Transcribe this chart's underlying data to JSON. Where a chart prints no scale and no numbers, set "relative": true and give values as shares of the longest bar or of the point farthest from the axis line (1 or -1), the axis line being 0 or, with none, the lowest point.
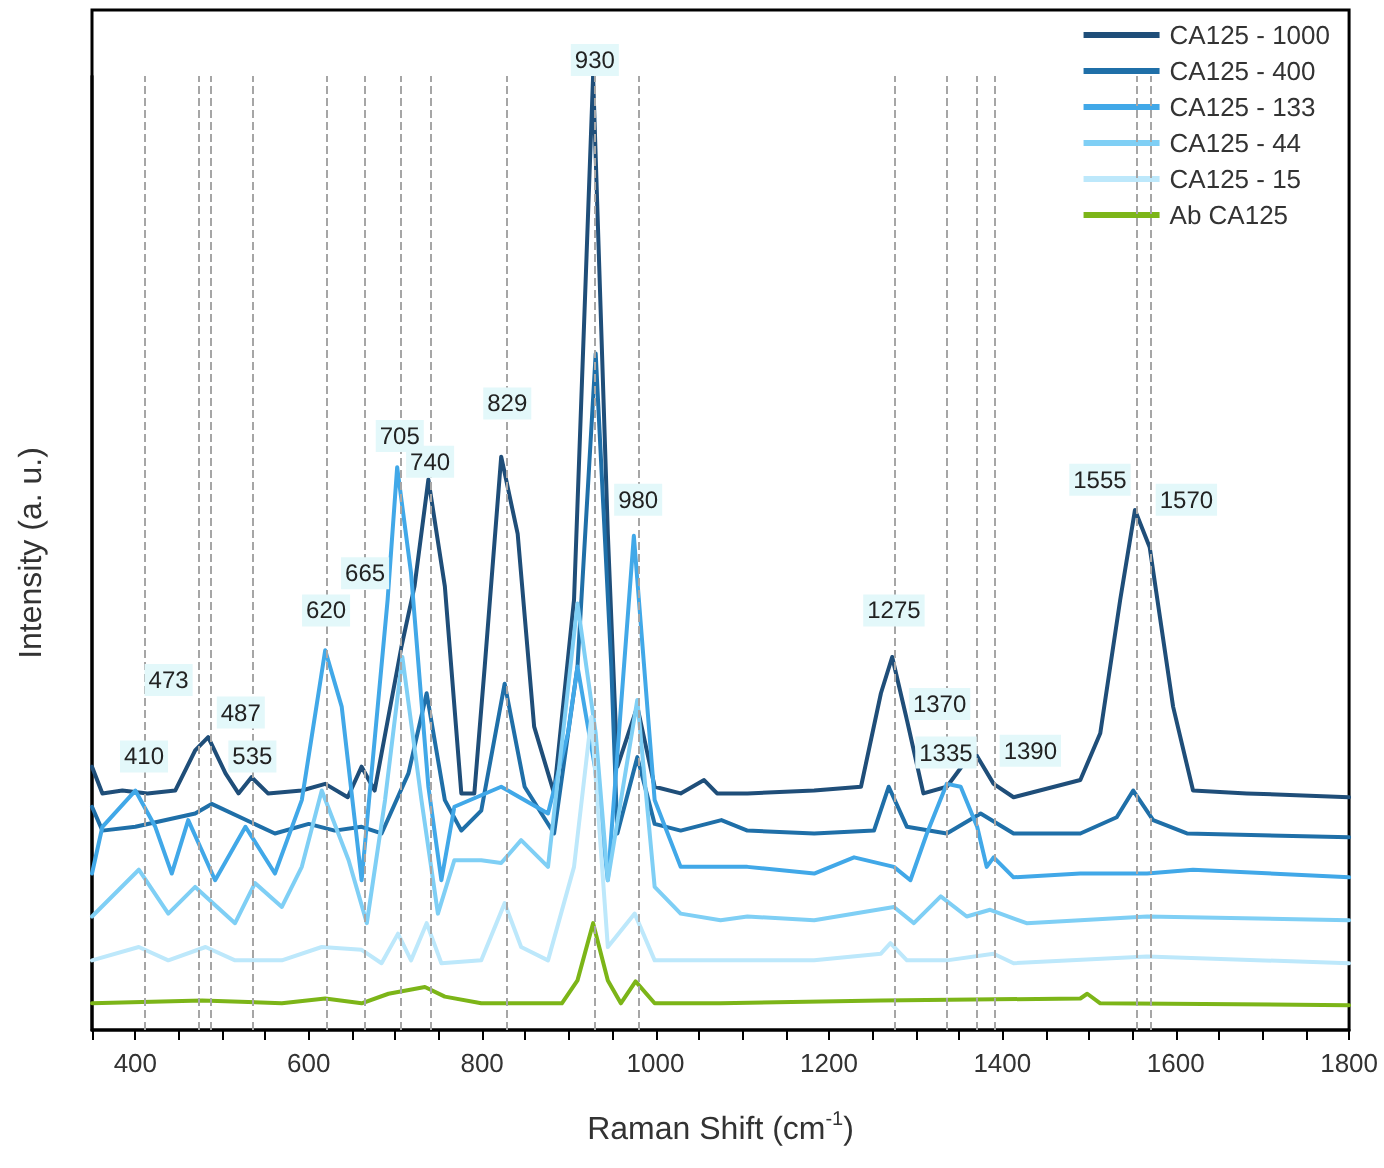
{
  "chart_data": {
    "type": "line",
    "xlabel": "Raman Shift (cm$^{-1}$)",
    "ylabel": "Intensity (a. u.)",
    "relative": true,
    "legend": "top right",
    "grid": false,
    "marker": "none",
    "line_style": "solid",
    "xlim": [
      350,
      1800
    ],
    "xticks": [
      {
        "value": 350,
        "label": null
      },
      400,
      {
        "value": 450,
        "label": null
      },
      {
        "value": 500,
        "label": null
      },
      {
        "value": 550,
        "label": null
      },
      600,
      {
        "value": 650,
        "label": null
      },
      {
        "value": 700,
        "label": null
      },
      {
        "value": 750,
        "label": null
      },
      800,
      {
        "value": 850,
        "label": null
      },
      {
        "value": 900,
        "label": null
      },
      {
        "value": 950,
        "label": null
      },
      1000,
      {
        "value": 1050,
        "label": null
      },
      {
        "value": 1100,
        "label": null
      },
      {
        "value": 1150,
        "label": null
      },
      1200,
      {
        "value": 1250,
        "label": null
      },
      {
        "value": 1300,
        "label": null
      },
      {
        "value": 1350,
        "label": null
      },
      1400,
      {
        "value": 1450,
        "label": null
      },
      {
        "value": 1500,
        "label": null
      },
      {
        "value": 1550,
        "label": null
      },
      1600,
      {
        "value": 1650,
        "label": null
      },
      {
        "value": 1700,
        "label": null
      },
      {
        "value": 1750,
        "label": null
      },
      1800
    ],
    "series": [
      {
        "name": "CA125 - 1000",
        "color": "#1f4e79",
        "x": [
          350,
          362,
          385,
          414,
          446,
          469,
          484,
          504,
          519,
          534,
          553,
          592,
          619,
          645,
          661,
          676,
          707,
          722,
          738,
          757,
          776,
          791,
          803,
          822,
          841,
          860,
          883,
          906,
          928,
          945,
          956,
          979,
          999,
          1029,
          1056,
          1071,
          1106,
          1183,
          1237,
          1260,
          1273,
          1290,
          1309,
          1336,
          1367,
          1390,
          1413,
          1490,
          1513,
          1536,
          1553,
          1570,
          1597,
          1620,
          1682,
          1800
        ],
        "values": [
          0.276,
          0.248,
          0.251,
          0.248,
          0.251,
          0.293,
          0.307,
          0.269,
          0.248,
          0.265,
          0.248,
          0.251,
          0.258,
          0.244,
          0.276,
          0.251,
          0.402,
          0.465,
          0.577,
          0.465,
          0.248,
          0.248,
          0.381,
          0.601,
          0.52,
          0.318,
          0.248,
          0.451,
          1,
          0.52,
          0.276,
          0.339,
          0.255,
          0.248,
          0.262,
          0.248,
          0.248,
          0.251,
          0.255,
          0.353,
          0.391,
          0.325,
          0.248,
          0.255,
          0.293,
          0.258,
          0.244,
          0.262,
          0.311,
          0.451,
          0.545,
          0.506,
          0.339,
          0.251,
          0.248,
          0.244
        ]
      },
      {
        "name": "CA125 - 400",
        "color": "#1f6fa8",
        "x": [
          350,
          362,
          400,
          469,
          488,
          561,
          600,
          630,
          661,
          684,
          715,
          736,
          757,
          776,
          799,
          826,
          849,
          883,
          910,
          931,
          949,
          956,
          979,
          999,
          1029,
          1076,
          1106,
          1183,
          1252,
          1269,
          1290,
          1336,
          1375,
          1413,
          1490,
          1532,
          1551,
          1574,
          1613,
          1800
        ],
        "values": [
          0.234,
          0.209,
          0.213,
          0.227,
          0.237,
          0.206,
          0.216,
          0.209,
          0.213,
          0.206,
          0.269,
          0.353,
          0.241,
          0.209,
          0.23,
          0.363,
          0.255,
          0.206,
          0.381,
          0.709,
          0.381,
          0.206,
          0.286,
          0.216,
          0.209,
          0.22,
          0.209,
          0.206,
          0.209,
          0.255,
          0.213,
          0.206,
          0.227,
          0.206,
          0.206,
          0.223,
          0.251,
          0.22,
          0.206,
          0.202
        ]
      },
      {
        "name": "CA125 - 133",
        "color": "#41a8e8",
        "x": [
          350,
          362,
          400,
          423,
          442,
          461,
          492,
          527,
          561,
          592,
          619,
          638,
          661,
          691,
          702,
          718,
          738,
          753,
          768,
          822,
          876,
          899,
          910,
          930,
          945,
          975,
          999,
          1029,
          1075,
          1106,
          1183,
          1229,
          1275,
          1294,
          1313,
          1336,
          1352,
          1371,
          1382,
          1390,
          1413,
          1490,
          1567,
          1620,
          1800
        ],
        "values": [
          0.164,
          0.213,
          0.251,
          0.213,
          0.164,
          0.22,
          0.157,
          0.213,
          0.164,
          0.241,
          0.398,
          0.339,
          0.157,
          0.451,
          0.59,
          0.479,
          0.255,
          0.157,
          0.234,
          0.255,
          0.227,
          0.311,
          0.381,
          0.276,
          0.157,
          0.518,
          0.241,
          0.171,
          0.171,
          0.171,
          0.164,
          0.181,
          0.171,
          0.157,
          0.206,
          0.258,
          0.255,
          0.213,
          0.171,
          0.181,
          0.16,
          0.164,
          0.164,
          0.168,
          0.16
        ]
      },
      {
        "name": "CA125 - 44",
        "color": "#7fcff5",
        "x": [
          350,
          404,
          438,
          469,
          515,
          538,
          569,
          592,
          615,
          646,
          667,
          688,
          708,
          730,
          749,
          768,
          799,
          822,
          845,
          876,
          910,
          931,
          945,
          979,
          999,
          1029,
          1075,
          1106,
          1183,
          1275,
          1298,
          1329,
          1359,
          1386,
          1428,
          1567,
          1800
        ],
        "values": [
          0.119,
          0.168,
          0.122,
          0.15,
          0.112,
          0.154,
          0.129,
          0.171,
          0.251,
          0.178,
          0.112,
          0.241,
          0.391,
          0.241,
          0.122,
          0.178,
          0.178,
          0.175,
          0.199,
          0.171,
          0.447,
          0.311,
          0.157,
          0.346,
          0.15,
          0.122,
          0.115,
          0.119,
          0.115,
          0.129,
          0.112,
          0.14,
          0.119,
          0.126,
          0.112,
          0.119,
          0.115
        ]
      },
      {
        "name": "CA125 - 15",
        "color": "#bde8fb",
        "x": [
          350,
          404,
          438,
          481,
          515,
          569,
          615,
          661,
          684,
          703,
          718,
          736,
          753,
          799,
          826,
          845,
          876,
          906,
          926,
          945,
          976,
          999,
          1075,
          1183,
          1260,
          1271,
          1290,
          1336,
          1390,
          1413,
          1567,
          1800
        ],
        "values": [
          0.073,
          0.087,
          0.073,
          0.087,
          0.073,
          0.073,
          0.087,
          0.084,
          0.07,
          0.101,
          0.073,
          0.112,
          0.07,
          0.073,
          0.133,
          0.087,
          0.073,
          0.171,
          0.328,
          0.087,
          0.122,
          0.073,
          0.073,
          0.073,
          0.08,
          0.091,
          0.073,
          0.073,
          0.08,
          0.07,
          0.077,
          0.07
        ]
      },
      {
        "name": "Ab CA125",
        "color": "#7cb518",
        "x": [
          350,
          477,
          569,
          619,
          661,
          692,
          734,
          757,
          799,
          892,
          910,
          928,
          945,
          960,
          977,
          999,
          1075,
          1260,
          1490,
          1498,
          1513,
          1800
        ],
        "values": [
          0.028,
          0.031,
          0.028,
          0.033,
          0.028,
          0.038,
          0.045,
          0.035,
          0.028,
          0.028,
          0.052,
          0.112,
          0.052,
          0.028,
          0.051,
          0.028,
          0.028,
          0.031,
          0.033,
          0.038,
          0.028,
          0.026
        ]
      }
    ],
    "ref_lines": [
      {
        "axis": "x",
        "value": 410
      },
      {
        "axis": "x",
        "value": 473
      },
      {
        "axis": "x",
        "value": 487
      },
      {
        "axis": "x",
        "value": 535
      },
      {
        "axis": "x",
        "value": 620
      },
      {
        "axis": "x",
        "value": 665
      },
      {
        "axis": "x",
        "value": 705
      },
      {
        "axis": "x",
        "value": 740
      },
      {
        "axis": "x",
        "value": 829
      },
      {
        "axis": "x",
        "value": 930
      },
      {
        "axis": "x",
        "value": 980
      },
      {
        "axis": "x",
        "value": 1275
      },
      {
        "axis": "x",
        "value": 1335
      },
      {
        "axis": "x",
        "value": 1370
      },
      {
        "axis": "x",
        "value": 1390
      },
      {
        "axis": "x",
        "value": 1555
      },
      {
        "axis": "x",
        "value": 1570
      }
    ],
    "annotations": [
      {
        "text": "410",
        "x": 410,
        "y": 0.27
      },
      {
        "text": "473",
        "x": 473,
        "y": 0.35
      },
      {
        "text": "487",
        "x": 487,
        "y": 0.316
      },
      {
        "text": "535",
        "x": 535,
        "y": 0.27
      },
      {
        "text": "620",
        "x": 620,
        "y": 0.423
      },
      {
        "text": "665",
        "x": 665,
        "y": 0.462
      },
      {
        "text": "705",
        "x": 705,
        "y": 0.606
      },
      {
        "text": "740",
        "x": 740,
        "y": 0.579
      },
      {
        "text": "829",
        "x": 829,
        "y": 0.64
      },
      {
        "text": "930",
        "x": 930,
        "y": 1
      },
      {
        "text": "980",
        "x": 980,
        "y": 0.539
      },
      {
        "text": "1275",
        "x": 1275,
        "y": 0.423
      },
      {
        "text": "1335",
        "x": 1335,
        "y": 0.274
      },
      {
        "text": "1370",
        "x": 1370,
        "y": 0.325
      },
      {
        "text": "1390",
        "x": 1390,
        "y": 0.276
      },
      {
        "text": "1555",
        "x": 1555,
        "y": 0.56
      },
      {
        "text": "1570",
        "x": 1570,
        "y": 0.539
      }
    ]
  }
}
